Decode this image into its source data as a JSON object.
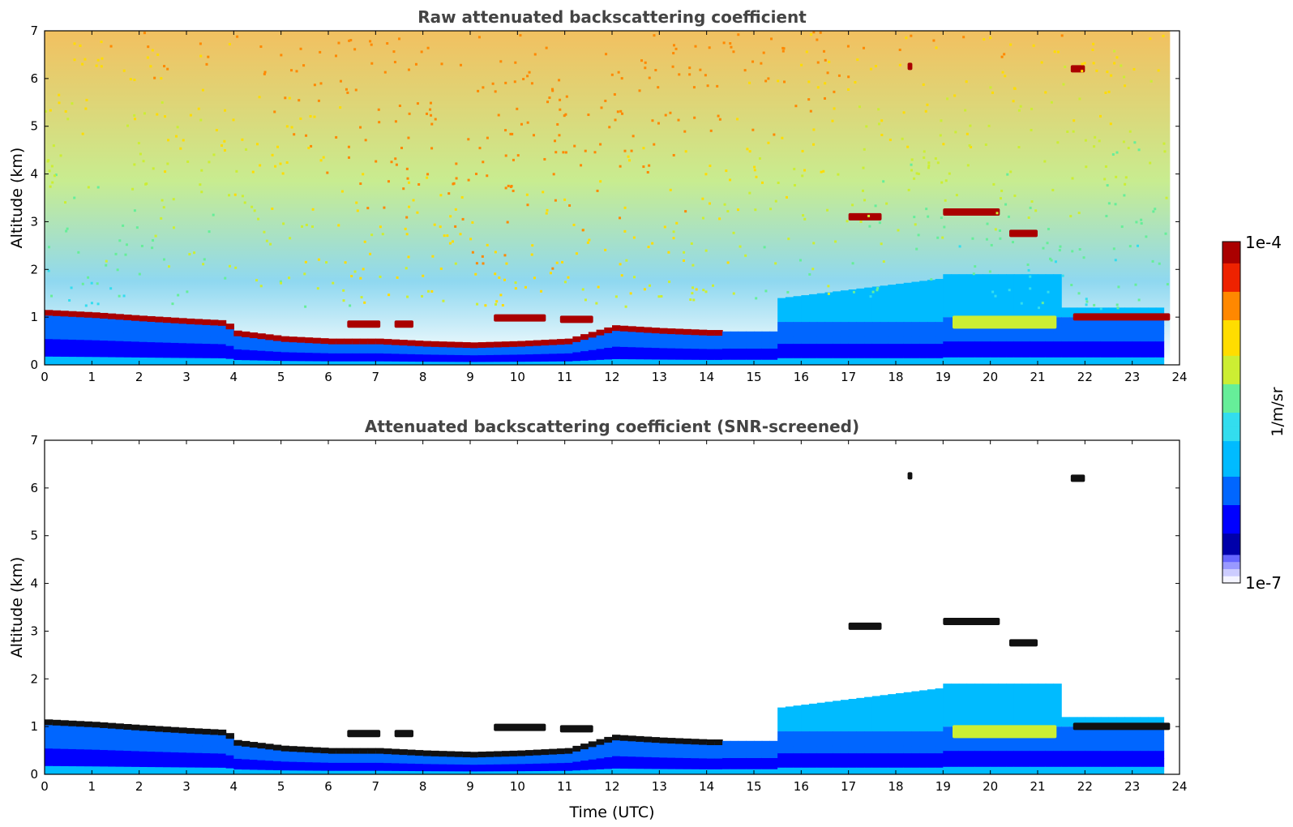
{
  "colors": {
    "jet": [
      "#0000aa",
      "#0000ff",
      "#0066ff",
      "#00bbff",
      "#33ddee",
      "#66ee99",
      "#ccee33",
      "#ffdd00",
      "#ff8800",
      "#ee2200",
      "#aa0000"
    ],
    "screen_low": [
      "#f4f4ff",
      "#ccccff",
      "#9999ff",
      "#6666ff"
    ],
    "axis": "#000000",
    "title": "#444444"
  },
  "chart_data": [
    {
      "type": "heatmap",
      "title": "Raw attenuated backscattering coefficient",
      "xlabel": "",
      "ylabel": "Altitude (km)",
      "xlim": [
        0,
        24
      ],
      "ylim": [
        0,
        7
      ],
      "xticks": [
        "0",
        "1",
        "2",
        "3",
        "4",
        "5",
        "6",
        "7",
        "8",
        "9",
        "10",
        "11",
        "12",
        "13",
        "14",
        "15",
        "16",
        "17",
        "18",
        "19",
        "20",
        "21",
        "22",
        "23",
        "24"
      ],
      "yticks": [
        "0",
        "1",
        "2",
        "3",
        "4",
        "5",
        "6",
        "7"
      ],
      "data_extent_hours": [
        0,
        23.8
      ],
      "layers": [
        {
          "kind": "cloud_layer",
          "points": [
            [
              0,
              1.1
            ],
            [
              1,
              1.05
            ],
            [
              2,
              0.98
            ],
            [
              3,
              0.92
            ],
            [
              3.8,
              0.88
            ],
            [
              3.9,
              0.68
            ],
            [
              5,
              0.55
            ],
            [
              6,
              0.5
            ],
            [
              7,
              0.5
            ],
            [
              8,
              0.45
            ],
            [
              9,
              0.42
            ],
            [
              10,
              0.45
            ],
            [
              11,
              0.5
            ],
            [
              12,
              0.78
            ],
            [
              13,
              0.72
            ],
            [
              14,
              0.68
            ],
            [
              14.3,
              0.68
            ]
          ]
        },
        {
          "kind": "cloud_patch",
          "x": [
            6.4,
            7.1
          ],
          "y": 0.85
        },
        {
          "kind": "cloud_patch",
          "x": [
            7.4,
            7.8
          ],
          "y": 0.85
        },
        {
          "kind": "cloud_patch",
          "x": [
            9.5,
            10.6
          ],
          "y": 0.98
        },
        {
          "kind": "cloud_patch",
          "x": [
            10.9,
            11.6
          ],
          "y": 0.95
        },
        {
          "kind": "cloud_patch",
          "x": [
            17.0,
            17.7
          ],
          "y": 3.1
        },
        {
          "kind": "cloud_patch",
          "x": [
            19.0,
            20.2
          ],
          "y": 3.2
        },
        {
          "kind": "cloud_patch",
          "x": [
            20.4,
            21.0
          ],
          "y": 2.75
        },
        {
          "kind": "cloud_patch",
          "x": [
            21.75,
            23.8
          ],
          "y": 1.0
        },
        {
          "kind": "cloud_patch",
          "x": [
            21.7,
            22.0
          ],
          "y": 6.2
        },
        {
          "kind": "cloud_patch",
          "x": [
            18.25,
            18.35
          ],
          "y": 6.25
        },
        {
          "kind": "aerosol_peak",
          "x": [
            19.2,
            21.4
          ],
          "y": 0.95
        }
      ]
    },
    {
      "type": "heatmap",
      "title": "Attenuated backscattering coefficient (SNR-screened)",
      "xlabel": "Time (UTC)",
      "ylabel": "Altitude (km)",
      "xlim": [
        0,
        24
      ],
      "ylim": [
        0,
        7
      ],
      "xticks": [
        "0",
        "1",
        "2",
        "3",
        "4",
        "5",
        "6",
        "7",
        "8",
        "9",
        "10",
        "11",
        "12",
        "13",
        "14",
        "15",
        "16",
        "17",
        "18",
        "19",
        "20",
        "21",
        "22",
        "23",
        "24"
      ],
      "yticks": [
        "0",
        "1",
        "2",
        "3",
        "4",
        "5",
        "6",
        "7"
      ],
      "data_extent_hours": [
        0,
        23.8
      ]
    }
  ],
  "colorbar": {
    "max_label": "1e-4",
    "min_label": "1e-7",
    "unit_label": "1/m/sr",
    "scale": "log",
    "range": [
      1e-07,
      0.0001
    ]
  }
}
